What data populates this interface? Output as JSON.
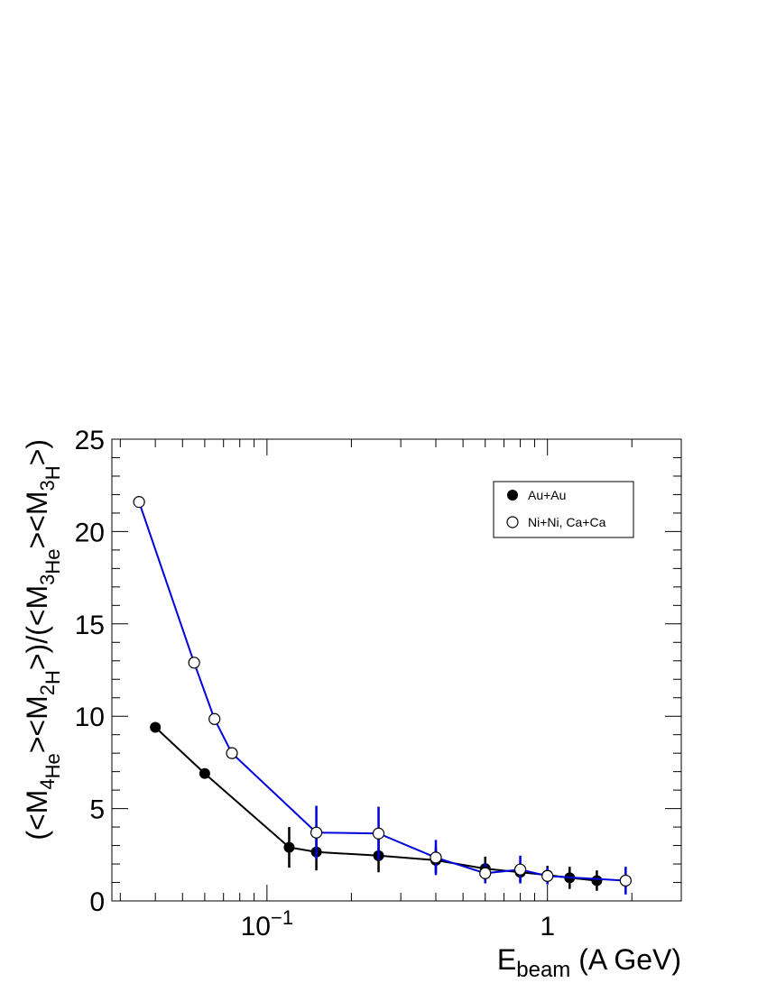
{
  "chart_data": {
    "type": "scatter",
    "x_scale": "log",
    "xlim": [
      0.028,
      3.0
    ],
    "ylim": [
      0,
      25
    ],
    "xlabel": {
      "main": "E",
      "sub": "beam",
      "rest": " (A GeV)"
    },
    "ylabel": {
      "p1": "(<M",
      "s1": "4",
      "p2": "He",
      "p3": "><M",
      "s2": "2",
      "p4": "H",
      "p5": ">)/(<M",
      "s3": "3",
      "p6": "He",
      "p7": "><M",
      "s4": "3",
      "p8": "H",
      "p9": ">)"
    },
    "y_ticks": [
      "0",
      "5",
      "10",
      "15",
      "20",
      "25"
    ],
    "y_tick_values": [
      0,
      5,
      10,
      15,
      20,
      25
    ],
    "x_ticks": [
      {
        "value": 0.1,
        "base": "10",
        "exp": "−1"
      },
      {
        "value": 1,
        "base": "1",
        "exp": ""
      }
    ],
    "grid": false,
    "legend_position": "top-right",
    "series": [
      {
        "name": "Au+Au",
        "marker": "filled-circle",
        "line_color": "#000000",
        "error_color": "#000000",
        "x": [
          0.04,
          0.06,
          0.12,
          0.15,
          0.25,
          0.4,
          0.6,
          0.8,
          1.0,
          1.2,
          1.5
        ],
        "y": [
          9.4,
          6.9,
          2.9,
          2.65,
          2.45,
          2.2,
          1.75,
          1.55,
          1.4,
          1.25,
          1.1
        ],
        "err": [
          0,
          0,
          1.1,
          1.0,
          0.9,
          0.7,
          0.65,
          0.5,
          0.5,
          0.6,
          0.55
        ]
      },
      {
        "name": "Ni+Ni, Ca+Ca",
        "marker": "open-circle",
        "line_color": "#0000dd",
        "error_color": "#0000dd",
        "x": [
          0.035,
          0.055,
          0.065,
          0.075,
          0.15,
          0.25,
          0.4,
          0.6,
          0.8,
          1.0,
          1.9
        ],
        "y": [
          21.6,
          12.9,
          9.85,
          8.0,
          3.7,
          3.65,
          2.35,
          1.5,
          1.7,
          1.35,
          1.1
        ],
        "err": [
          0,
          0,
          0,
          0,
          1.45,
          1.45,
          0.95,
          0.55,
          0.75,
          0.45,
          0.75
        ]
      }
    ]
  }
}
